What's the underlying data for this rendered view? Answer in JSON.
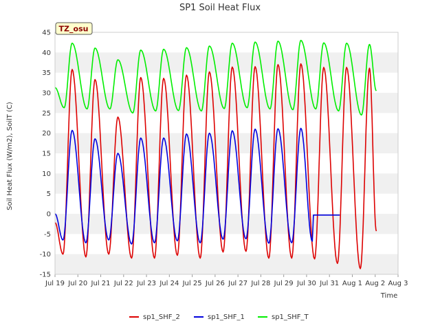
{
  "chart_data": {
    "type": "line",
    "title": "SP1 Soil Heat Flux",
    "xlabel": "Time",
    "ylabel": "Soil Heat Flux (W/m2), SoilT (C)",
    "badge": "TZ_osu",
    "xlim": [
      19.0,
      34.0
    ],
    "ylim": [
      -15,
      45
    ],
    "yticks": [
      -15,
      -10,
      -5,
      0,
      5,
      10,
      15,
      20,
      25,
      30,
      35,
      40,
      45
    ],
    "xticks": [
      {
        "value": 19,
        "label": "Jul 19"
      },
      {
        "value": 20,
        "label": "Jul 20"
      },
      {
        "value": 21,
        "label": "Jul 21"
      },
      {
        "value": 22,
        "label": "Jul 22"
      },
      {
        "value": 23,
        "label": "Jul 23"
      },
      {
        "value": 24,
        "label": "Jul 24"
      },
      {
        "value": 25,
        "label": "Jul 25"
      },
      {
        "value": 26,
        "label": "Jul 26"
      },
      {
        "value": 27,
        "label": "Jul 27"
      },
      {
        "value": 28,
        "label": "Jul 28"
      },
      {
        "value": 29,
        "label": "Jul 29"
      },
      {
        "value": 30,
        "label": "Jul 30"
      },
      {
        "value": 31,
        "label": "Jul 31"
      },
      {
        "value": 32,
        "label": "Aug 1"
      },
      {
        "value": 33,
        "label": "Aug 2"
      },
      {
        "value": 34,
        "label": "Aug 3"
      }
    ],
    "grid": "horizontal-bands",
    "legend": "bottom",
    "series": [
      {
        "name": "sp1_SHF_2",
        "color": "#dd0000",
        "peaks": [
          {
            "t": 19.75,
            "v": 35.8
          },
          {
            "t": 20.75,
            "v": 33.3
          },
          {
            "t": 21.75,
            "v": 24.0
          },
          {
            "t": 22.75,
            "v": 33.8
          },
          {
            "t": 23.75,
            "v": 33.6
          },
          {
            "t": 24.75,
            "v": 34.4
          },
          {
            "t": 25.75,
            "v": 35.2
          },
          {
            "t": 26.75,
            "v": 36.4
          },
          {
            "t": 27.75,
            "v": 36.5
          },
          {
            "t": 28.75,
            "v": 37.0
          },
          {
            "t": 29.75,
            "v": 37.2
          },
          {
            "t": 30.75,
            "v": 36.3
          },
          {
            "t": 31.75,
            "v": 36.3
          },
          {
            "t": 32.75,
            "v": 36.1
          }
        ],
        "troughs": [
          {
            "t": 19.0,
            "v": -2.2
          },
          {
            "t": 19.35,
            "v": -10.0
          },
          {
            "t": 20.35,
            "v": -10.7
          },
          {
            "t": 21.35,
            "v": -10.0
          },
          {
            "t": 22.35,
            "v": -11.0
          },
          {
            "t": 23.35,
            "v": -11.0
          },
          {
            "t": 24.35,
            "v": -10.3
          },
          {
            "t": 25.35,
            "v": -11.0
          },
          {
            "t": 26.35,
            "v": -9.5
          },
          {
            "t": 27.35,
            "v": -9.3
          },
          {
            "t": 28.35,
            "v": -11.0
          },
          {
            "t": 29.35,
            "v": -11.0
          },
          {
            "t": 30.35,
            "v": -11.2
          },
          {
            "t": 31.35,
            "v": -12.3
          },
          {
            "t": 32.35,
            "v": -13.6
          },
          {
            "t": 33.05,
            "v": -4.3
          }
        ]
      },
      {
        "name": "sp1_SHF_1",
        "color": "#0000dd",
        "peaks": [
          {
            "t": 19.75,
            "v": 20.7
          },
          {
            "t": 20.75,
            "v": 18.6
          },
          {
            "t": 21.75,
            "v": 15.0
          },
          {
            "t": 22.75,
            "v": 18.8
          },
          {
            "t": 23.75,
            "v": 18.8
          },
          {
            "t": 24.75,
            "v": 19.8
          },
          {
            "t": 25.75,
            "v": 20.0
          },
          {
            "t": 26.75,
            "v": 20.6
          },
          {
            "t": 27.75,
            "v": 21.0
          },
          {
            "t": 28.75,
            "v": 21.1
          },
          {
            "t": 29.75,
            "v": 21.2
          }
        ],
        "troughs": [
          {
            "t": 19.0,
            "v": 0.0
          },
          {
            "t": 19.35,
            "v": -6.5
          },
          {
            "t": 20.35,
            "v": -7.2
          },
          {
            "t": 21.35,
            "v": -6.5
          },
          {
            "t": 22.35,
            "v": -7.5
          },
          {
            "t": 23.35,
            "v": -7.2
          },
          {
            "t": 24.35,
            "v": -6.7
          },
          {
            "t": 25.35,
            "v": -7.2
          },
          {
            "t": 26.35,
            "v": -6.3
          },
          {
            "t": 27.35,
            "v": -6.2
          },
          {
            "t": 28.35,
            "v": -7.3
          },
          {
            "t": 29.35,
            "v": -7.2
          },
          {
            "t": 30.25,
            "v": -6.8
          }
        ],
        "tail": [
          [
            30.3,
            -0.3
          ],
          [
            31.45,
            -0.3
          ]
        ]
      },
      {
        "name": "sp1_SHF_T",
        "color": "#00ee00",
        "peaks": [
          {
            "t": 19.75,
            "v": 42.3
          },
          {
            "t": 20.75,
            "v": 41.1
          },
          {
            "t": 21.75,
            "v": 38.2
          },
          {
            "t": 22.75,
            "v": 40.6
          },
          {
            "t": 23.75,
            "v": 40.8
          },
          {
            "t": 24.75,
            "v": 41.2
          },
          {
            "t": 25.75,
            "v": 41.6
          },
          {
            "t": 26.75,
            "v": 42.3
          },
          {
            "t": 27.75,
            "v": 42.6
          },
          {
            "t": 28.75,
            "v": 42.8
          },
          {
            "t": 29.75,
            "v": 43.0
          },
          {
            "t": 30.75,
            "v": 42.4
          },
          {
            "t": 31.75,
            "v": 42.3
          },
          {
            "t": 32.75,
            "v": 42.0
          }
        ],
        "troughs": [
          {
            "t": 19.0,
            "v": 31.3
          },
          {
            "t": 19.4,
            "v": 26.3
          },
          {
            "t": 20.4,
            "v": 26.0
          },
          {
            "t": 21.4,
            "v": 26.0
          },
          {
            "t": 22.4,
            "v": 25.0
          },
          {
            "t": 23.4,
            "v": 25.5
          },
          {
            "t": 24.4,
            "v": 25.6
          },
          {
            "t": 25.4,
            "v": 25.5
          },
          {
            "t": 26.4,
            "v": 26.1
          },
          {
            "t": 27.4,
            "v": 26.3
          },
          {
            "t": 28.4,
            "v": 26.0
          },
          {
            "t": 29.4,
            "v": 25.8
          },
          {
            "t": 30.4,
            "v": 26.0
          },
          {
            "t": 31.4,
            "v": 25.5
          },
          {
            "t": 32.4,
            "v": 24.5
          },
          {
            "t": 33.05,
            "v": 30.5
          }
        ]
      }
    ]
  }
}
